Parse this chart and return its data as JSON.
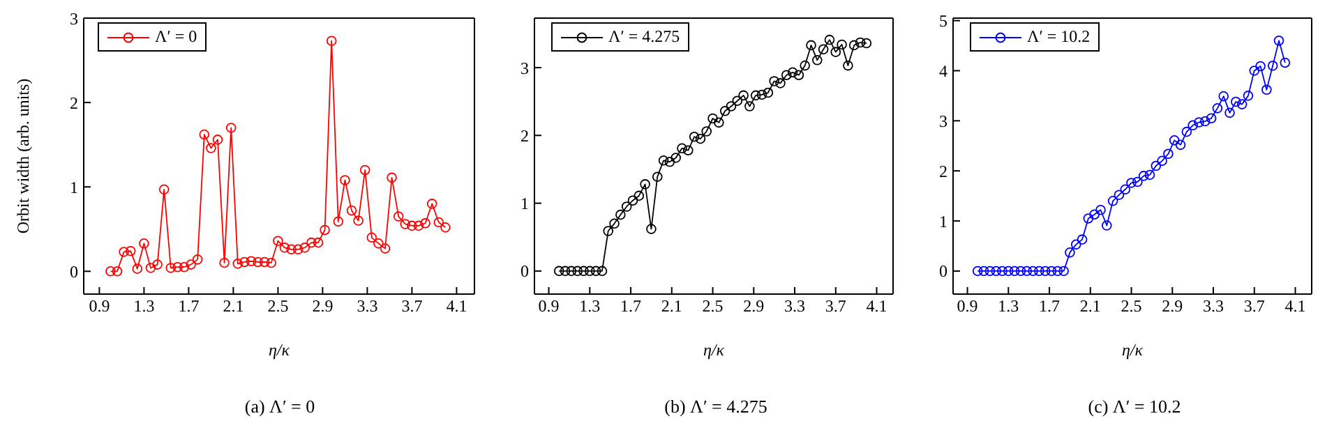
{
  "chart_data": [
    {
      "type": "line",
      "ylabel": "Orbit width (arb. units)",
      "xlabel": "η/κ",
      "annotations": [
        "(a) Λ′ = 0"
      ],
      "x": [
        1,
        1.06,
        1.12,
        1.18,
        1.24,
        1.3,
        1.36,
        1.42,
        1.48,
        1.54,
        1.6,
        1.66,
        1.72,
        1.78,
        1.84,
        1.9,
        1.96,
        2.02,
        2.08,
        2.14,
        2.2,
        2.26,
        2.32,
        2.38,
        2.44,
        2.5,
        2.56,
        2.62,
        2.68,
        2.74,
        2.8,
        2.86,
        2.92,
        2.98,
        3.04,
        3.1,
        3.16,
        3.22,
        3.28,
        3.34,
        3.4,
        3.46,
        3.52,
        3.58,
        3.64,
        3.7,
        3.76,
        3.82,
        3.88,
        3.94,
        4.0
      ],
      "series": [
        {
          "name": "Λ′ = 0",
          "color": "#ff0000",
          "values": [
            0,
            0,
            0.23,
            0.24,
            0.03,
            0.33,
            0.04,
            0.08,
            0.97,
            0.04,
            0.05,
            0.05,
            0.08,
            0.14,
            1.62,
            1.46,
            1.56,
            0.1,
            1.7,
            0.09,
            0.11,
            0.12,
            0.11,
            0.11,
            0.1,
            0.36,
            0.28,
            0.26,
            0.26,
            0.28,
            0.34,
            0.34,
            0.49,
            2.73,
            0.59,
            1.08,
            0.72,
            0.6,
            1.2,
            0.4,
            0.33,
            0.27,
            1.11,
            0.65,
            0.56,
            0.54,
            0.54,
            0.57,
            0.8,
            0.58,
            0.52
          ]
        }
      ],
      "xlim": [
        0.76,
        4.26
      ],
      "xticks": [
        0.9,
        1.3,
        1.7,
        2.1,
        2.5,
        2.9,
        3.3,
        3.7,
        4.1
      ],
      "ylim": [
        -0.27,
        3.0
      ],
      "yticks": [
        0,
        1,
        2,
        3
      ],
      "legend": "top left",
      "marker": "circle",
      "line_style": "solid",
      "grid": false
    },
    {
      "type": "line",
      "xlabel": "η/κ",
      "annotations": [
        "(b) Λ′ = 4.275"
      ],
      "x": [
        1,
        1.06,
        1.12,
        1.18,
        1.24,
        1.3,
        1.36,
        1.42,
        1.48,
        1.54,
        1.6,
        1.66,
        1.72,
        1.78,
        1.84,
        1.9,
        1.96,
        2.02,
        2.08,
        2.14,
        2.2,
        2.26,
        2.32,
        2.38,
        2.44,
        2.5,
        2.56,
        2.62,
        2.68,
        2.74,
        2.8,
        2.86,
        2.92,
        2.98,
        3.04,
        3.1,
        3.16,
        3.22,
        3.28,
        3.34,
        3.4,
        3.46,
        3.52,
        3.58,
        3.64,
        3.7,
        3.76,
        3.82,
        3.88,
        3.94,
        4.0
      ],
      "series": [
        {
          "name": "Λ′ = 4.275",
          "color": "#000000",
          "values": [
            0,
            0,
            0,
            0,
            0,
            0,
            0,
            0,
            0.59,
            0.7,
            0.83,
            0.95,
            1.04,
            1.11,
            1.28,
            0.62,
            1.39,
            1.63,
            1.61,
            1.67,
            1.81,
            1.78,
            1.98,
            1.95,
            2.06,
            2.25,
            2.19,
            2.36,
            2.43,
            2.51,
            2.59,
            2.43,
            2.59,
            2.6,
            2.63,
            2.8,
            2.77,
            2.89,
            2.93,
            2.89,
            3.03,
            3.33,
            3.11,
            3.27,
            3.41,
            3.23,
            3.34,
            3.03,
            3.33,
            3.37,
            3.36
          ]
        }
      ],
      "xlim": [
        0.76,
        4.26
      ],
      "xticks": [
        0.9,
        1.3,
        1.7,
        2.1,
        2.5,
        2.9,
        3.3,
        3.7,
        4.1
      ],
      "ylim": [
        -0.34,
        3.73
      ],
      "yticks": [
        0,
        1,
        2,
        3
      ],
      "legend": "top left",
      "marker": "circle",
      "line_style": "solid",
      "grid": false
    },
    {
      "type": "line",
      "xlabel": "η/κ",
      "annotations": [
        "(c) Λ′ = 10.2"
      ],
      "x": [
        1,
        1.06,
        1.12,
        1.18,
        1.24,
        1.3,
        1.36,
        1.42,
        1.48,
        1.54,
        1.6,
        1.66,
        1.72,
        1.78,
        1.84,
        1.9,
        1.96,
        2.02,
        2.08,
        2.14,
        2.2,
        2.26,
        2.32,
        2.38,
        2.44,
        2.5,
        2.56,
        2.62,
        2.68,
        2.74,
        2.8,
        2.86,
        2.92,
        2.98,
        3.04,
        3.1,
        3.16,
        3.22,
        3.28,
        3.34,
        3.4,
        3.46,
        3.52,
        3.58,
        3.64,
        3.7,
        3.76,
        3.82,
        3.88,
        3.94,
        4.0
      ],
      "series": [
        {
          "name": "Λ′ = 10.2",
          "color": "#0000ff",
          "values": [
            0,
            0,
            0,
            0,
            0,
            0,
            0,
            0,
            0,
            0,
            0,
            0,
            0,
            0,
            0,
            0.37,
            0.53,
            0.63,
            1.05,
            1.13,
            1.22,
            0.91,
            1.4,
            1.52,
            1.63,
            1.76,
            1.78,
            1.9,
            1.92,
            2.1,
            2.2,
            2.34,
            2.61,
            2.52,
            2.78,
            2.91,
            2.97,
            2.99,
            3.05,
            3.25,
            3.49,
            3.16,
            3.38,
            3.33,
            3.5,
            4.0,
            4.09,
            3.62,
            4.1,
            4.6,
            4.16
          ]
        }
      ],
      "xlim": [
        0.76,
        4.26
      ],
      "xticks": [
        0.9,
        1.3,
        1.7,
        2.1,
        2.5,
        2.9,
        3.3,
        3.7,
        4.1
      ],
      "ylim": [
        -0.46,
        5.05
      ],
      "yticks": [
        0,
        1,
        2,
        3,
        4,
        5
      ],
      "legend": "top left",
      "marker": "circle",
      "line_style": "solid",
      "grid": false
    }
  ]
}
